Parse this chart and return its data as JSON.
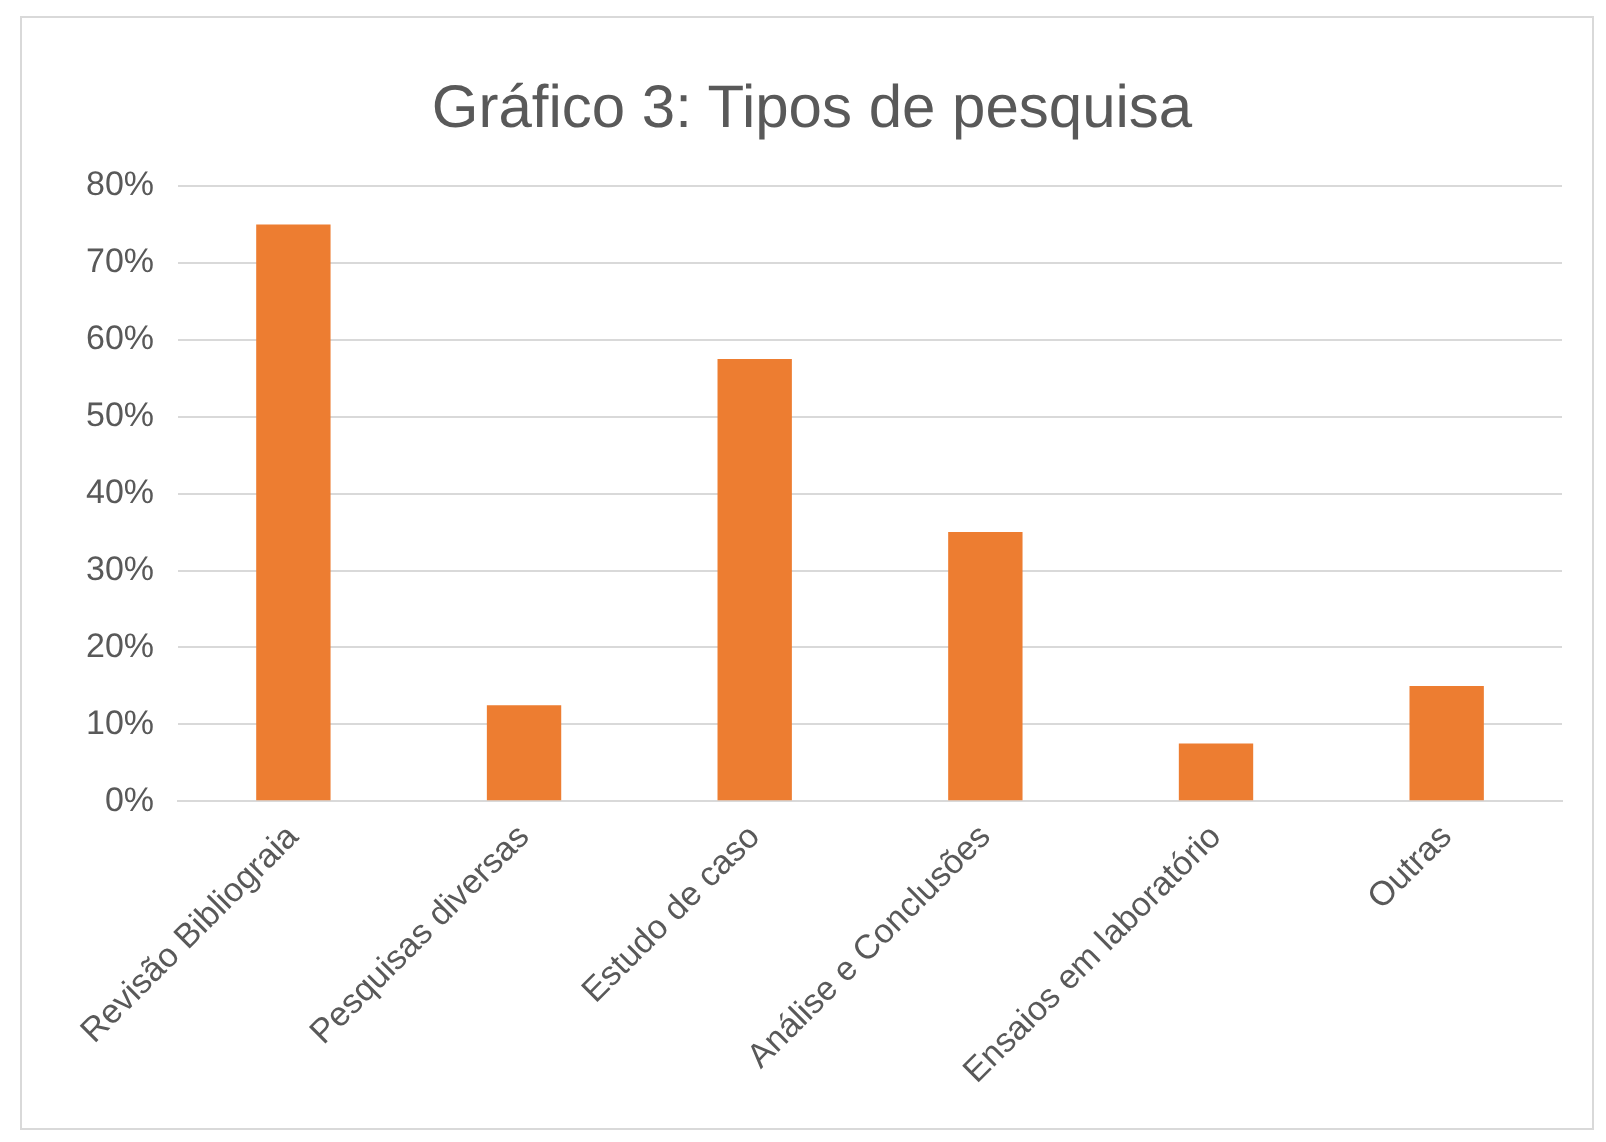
{
  "chart_data": {
    "type": "bar",
    "title": "Gráfico 3: Tipos de pesquisa",
    "categories": [
      "Revisão Bibliograia",
      "Pesquisas diversas",
      "Estudo de caso",
      "Análise e Conclusões",
      "Ensaios em laboratório",
      "Outras"
    ],
    "values": [
      75,
      12.5,
      57.5,
      35,
      7.5,
      15
    ],
    "color": "#ed7d31",
    "ylim": [
      0,
      80
    ],
    "yticks": [
      {
        "value": 0,
        "label": "0%"
      },
      {
        "value": 10,
        "label": "10%"
      },
      {
        "value": 20,
        "label": "20%"
      },
      {
        "value": 30,
        "label": "30%"
      },
      {
        "value": 40,
        "label": "40%"
      },
      {
        "value": 50,
        "label": "50%"
      },
      {
        "value": 60,
        "label": "60%"
      },
      {
        "value": 70,
        "label": "70%"
      },
      {
        "value": 80,
        "label": "80%"
      }
    ],
    "grid": "y",
    "legend": false
  }
}
